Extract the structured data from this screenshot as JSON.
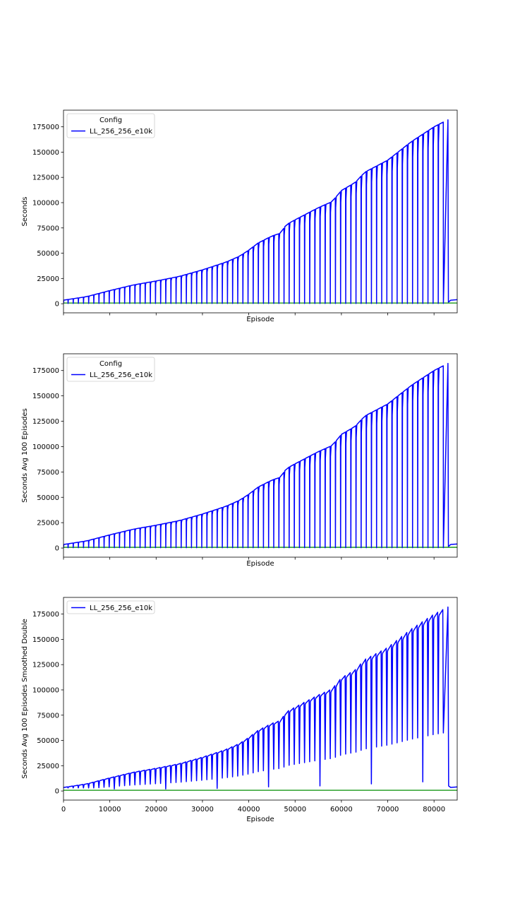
{
  "chart_data": [
    {
      "type": "line",
      "xlabel": "Episode",
      "ylabel": "Seconds",
      "show_x_ticklabels": false,
      "xlim": [
        0,
        85000
      ],
      "ylim": [
        -9000,
        191500
      ],
      "yticks": [
        0,
        25000,
        50000,
        75000,
        100000,
        125000,
        150000,
        175000
      ],
      "ytick_labels": [
        "0",
        "25000",
        "50000",
        "75000",
        "100000",
        "125000",
        "150000",
        "175000"
      ],
      "grid": false,
      "legend": {
        "title": "Config",
        "placement": "top-left",
        "entries": [
          "LL_256_256_e10k"
        ]
      },
      "series": [
        {
          "name": "LL_256_256_e10k",
          "color": "#0000ff",
          "kind": "sawtooth"
        },
        {
          "color": "#2ca02c",
          "kind": "baseline",
          "value": 700
        }
      ]
    },
    {
      "type": "line",
      "xlabel": "Episode",
      "ylabel": "Seconds Avg 100 Episodes",
      "show_x_ticklabels": false,
      "xlim": [
        0,
        85000
      ],
      "ylim": [
        -9000,
        191500
      ],
      "yticks": [
        0,
        25000,
        50000,
        75000,
        100000,
        125000,
        150000,
        175000
      ],
      "ytick_labels": [
        "0",
        "25000",
        "50000",
        "75000",
        "100000",
        "125000",
        "150000",
        "175000"
      ],
      "grid": false,
      "legend": {
        "title": "Config",
        "placement": "top-left",
        "entries": [
          "LL_256_256_e10k"
        ]
      },
      "series": [
        {
          "name": "LL_256_256_e10k",
          "color": "#0000ff",
          "kind": "sawtooth"
        },
        {
          "color": "#2ca02c",
          "kind": "baseline",
          "value": 700
        }
      ]
    },
    {
      "type": "line",
      "xlabel": "Episode",
      "ylabel": "Seconds Avg 100 Episodes Smoothed Double",
      "show_x_ticklabels": true,
      "xlim": [
        0,
        85000
      ],
      "ylim": [
        -9000,
        191500
      ],
      "xticks": [
        0,
        10000,
        20000,
        30000,
        40000,
        50000,
        60000,
        70000,
        80000
      ],
      "xtick_labels": [
        "0",
        "10000",
        "20000",
        "30000",
        "40000",
        "50000",
        "60000",
        "70000",
        "80000"
      ],
      "yticks": [
        0,
        25000,
        50000,
        75000,
        100000,
        125000,
        150000,
        175000
      ],
      "ytick_labels": [
        "0",
        "25000",
        "50000",
        "75000",
        "100000",
        "125000",
        "150000",
        "175000"
      ],
      "grid": false,
      "legend": {
        "placement": "top-left",
        "entries": [
          "LL_256_256_e10k"
        ]
      },
      "series": [
        {
          "name": "LL_256_256_e10k",
          "color": "#0000ff",
          "kind": "smoothed"
        },
        {
          "color": "#2ca02c",
          "kind": "baseline",
          "value": 700
        }
      ]
    }
  ],
  "envelope": {
    "x": [
      0,
      5000,
      10000,
      15000,
      20000,
      25000,
      30000,
      35000,
      38000,
      40000,
      42000,
      45000,
      47000,
      48000,
      50000,
      55000,
      58000,
      60000,
      63000,
      65000,
      70000,
      75000,
      80000,
      83000
    ],
    "y": [
      3500,
      7000,
      13000,
      18500,
      22500,
      27000,
      33500,
      41000,
      47000,
      53000,
      60000,
      67000,
      70000,
      78000,
      83000,
      95000,
      101000,
      112000,
      120000,
      130000,
      142000,
      160000,
      175000,
      182000
    ]
  },
  "tail": {
    "x": [
      83600,
      85000
    ],
    "y": [
      3500,
      4000
    ]
  },
  "troughs": {
    "x": [
      11000,
      22000,
      33000,
      44500,
      55500,
      66700,
      77700
    ],
    "y": [
      2000,
      2000,
      2500,
      4000,
      5000,
      7000,
      9000
    ]
  }
}
